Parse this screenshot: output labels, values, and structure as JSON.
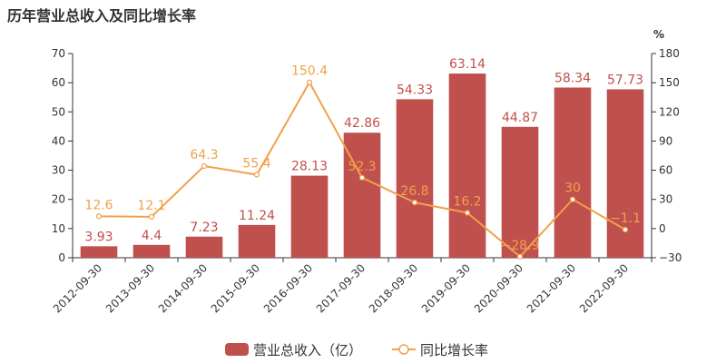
{
  "title": "历年营业总收入及同比增长率",
  "colors": {
    "bar": "#c0504d",
    "bar_label": "#c0504d",
    "line": "#f0a14b",
    "line_label": "#f0a14b",
    "axis": "#333333"
  },
  "chart_data": {
    "type": "bar",
    "categories": [
      "2012-09-30",
      "2013-09-30",
      "2014-09-30",
      "2015-09-30",
      "2016-09-30",
      "2017-09-30",
      "2018-09-30",
      "2019-09-30",
      "2020-09-30",
      "2021-09-30",
      "2022-09-30"
    ],
    "series": [
      {
        "name": "营业总收入（亿）",
        "type": "bar",
        "axis": "left",
        "values": [
          3.93,
          4.4,
          7.23,
          11.24,
          28.13,
          42.86,
          54.33,
          63.14,
          44.87,
          58.34,
          57.73
        ],
        "labels": [
          "3.93",
          "4.4",
          "7.23",
          "11.24",
          "28.13",
          "42.86",
          "54.33",
          "63.14",
          "44.87",
          "58.34",
          "57.73"
        ]
      },
      {
        "name": "同比增长率",
        "type": "line",
        "axis": "right",
        "values": [
          12.6,
          12.1,
          64.3,
          55.4,
          150.4,
          52.3,
          26.8,
          16.2,
          -28.9,
          30,
          -1.1
        ],
        "labels": [
          "12.6",
          "12.1",
          "64.3",
          "55.4",
          "150.4",
          "52.3",
          "26.8",
          "16.2",
          "−28.9",
          "30",
          "−1.1"
        ]
      }
    ],
    "y_left": {
      "ylim": [
        0,
        70
      ],
      "ticks": [
        "0",
        "10",
        "20",
        "30",
        "40",
        "50",
        "60",
        "70"
      ]
    },
    "y_right": {
      "unit": "%",
      "ylim": [
        -30,
        180
      ],
      "ticks": [
        "−30",
        "0",
        "30",
        "60",
        "90",
        "120",
        "150",
        "180"
      ]
    },
    "grid": false,
    "legend_position": "bottom-center"
  }
}
